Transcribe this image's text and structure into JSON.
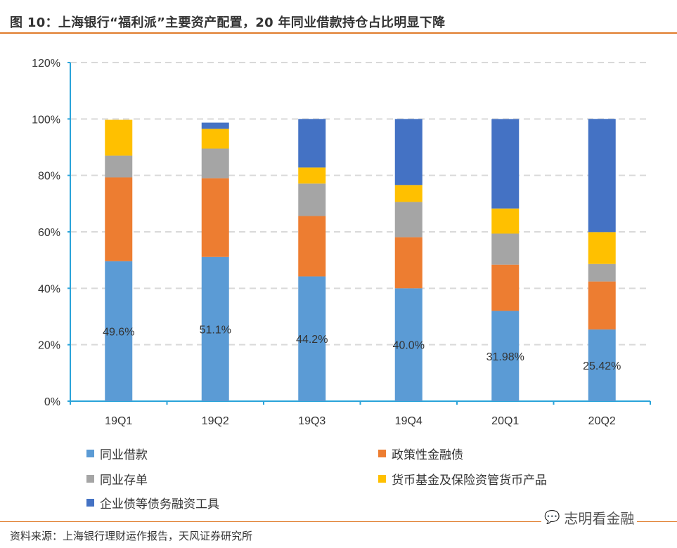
{
  "title": "图 10：上海银行“福利派”主要资产配置，20 年同业借款持仓占比明显下降",
  "source": "资料来源：上海银行理财运作报告，天风证券研究所",
  "watermark": "志明看金融",
  "chart_data": {
    "type": "bar",
    "stacked": true,
    "categories": [
      "19Q1",
      "19Q2",
      "19Q3",
      "19Q4",
      "20Q1",
      "20Q2"
    ],
    "ylim": [
      0,
      120
    ],
    "yticks": [
      "0%",
      "20%",
      "40%",
      "60%",
      "80%",
      "100%",
      "120%"
    ],
    "grid": true,
    "legend_position": "bottom",
    "series": [
      {
        "name": "同业借款",
        "color": "#5b9bd5",
        "values": [
          49.6,
          51.1,
          44.2,
          40.0,
          31.98,
          25.42
        ],
        "labels": [
          "49.6%",
          "51.1%",
          "44.2%",
          "40.0%",
          "31.98%",
          "25.42%"
        ]
      },
      {
        "name": "政策性金融债",
        "color": "#ed7d31",
        "values": [
          29.7,
          27.9,
          21.4,
          18.1,
          16.4,
          17.0
        ]
      },
      {
        "name": "同业存单",
        "color": "#a5a5a5",
        "values": [
          7.7,
          10.5,
          11.5,
          12.5,
          11.0,
          6.2
        ]
      },
      {
        "name": "货币基金及保险资管货币产品",
        "color": "#ffc000",
        "values": [
          12.7,
          7.0,
          5.7,
          6.0,
          8.9,
          11.3
        ]
      },
      {
        "name": "企业债等债务融资工具",
        "color": "#4472c4",
        "values": [
          0,
          2.2,
          17.2,
          23.4,
          31.7,
          40.1
        ]
      }
    ]
  }
}
